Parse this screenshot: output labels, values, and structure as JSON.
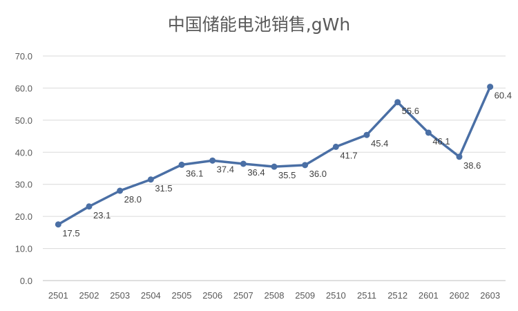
{
  "chart_data": {
    "type": "line",
    "title": "中国储能电池销售,gWh",
    "xlabel": "",
    "ylabel": "",
    "categories": [
      "2501",
      "2502",
      "2503",
      "2504",
      "2505",
      "2506",
      "2507",
      "2508",
      "2509",
      "2510",
      "2511",
      "2512",
      "2601",
      "2602",
      "2603"
    ],
    "series": [
      {
        "values": [
          17.5,
          23.1,
          28.0,
          31.5,
          36.1,
          37.4,
          36.4,
          35.5,
          36.0,
          41.7,
          45.4,
          55.6,
          46.1,
          38.6,
          60.4
        ],
        "labels": [
          "17.5",
          "23.1",
          "28.0",
          "31.5",
          "36.1",
          "37.4",
          "36.4",
          "35.5",
          "36.0",
          "41.7",
          "45.4",
          "55.6",
          "46.1",
          "38.6",
          "60.4"
        ],
        "color": "#4A6FA5"
      }
    ],
    "ylim": [
      0,
      70
    ],
    "yticks": [
      "0.0",
      "10.0",
      "20.0",
      "30.0",
      "40.0",
      "50.0",
      "60.0",
      "70.0"
    ],
    "grid": true,
    "legend": "none"
  }
}
